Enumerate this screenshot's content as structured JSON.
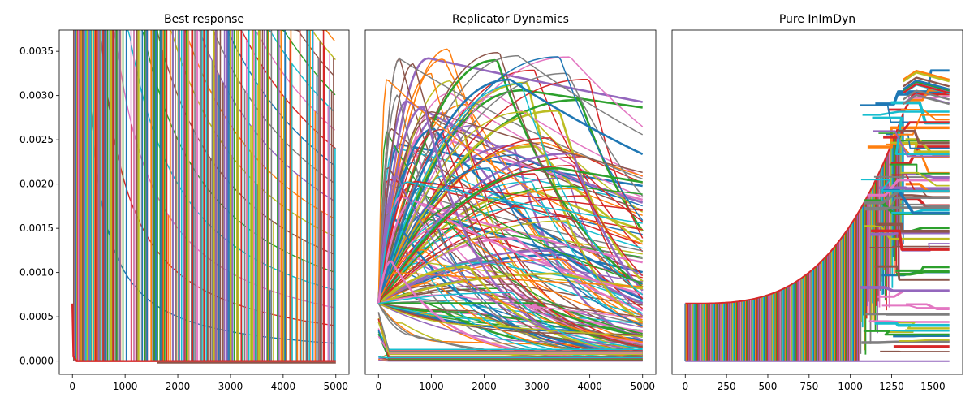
{
  "chart_data": [
    {
      "type": "line",
      "title": "Best response",
      "xlabel": "",
      "ylabel": "",
      "xlim": [
        -250,
        5250
      ],
      "ylim": [
        -0.00015,
        0.00374
      ],
      "x_ticks": [
        0,
        1000,
        2000,
        3000,
        4000,
        5000
      ],
      "x_tick_labels": [
        "0",
        "1000",
        "2000",
        "3000",
        "4000",
        "5000"
      ],
      "y_ticks": [
        0.0,
        0.0005,
        0.001,
        0.0015,
        0.002,
        0.0025,
        0.003,
        0.0035
      ],
      "y_tick_labels": [
        "0.0000",
        "0.0005",
        "0.0010",
        "0.0015",
        "0.0020",
        "0.0025",
        "0.0030",
        "0.0035"
      ],
      "grid": false,
      "legend": "none",
      "series_note_values": {
        "initial_value": 0.00065,
        "decay_curves_at_x5000": [
          0.0002,
          0.0004,
          0.0006,
          0.0008,
          0.001,
          0.0012,
          0.0014,
          0.0016,
          0.0018,
          0.002,
          0.0022,
          0.0024,
          0.0026,
          0.0028,
          0.003,
          0.0032,
          0.0034,
          0.0036
        ],
        "floor_value": 0.0
      }
    },
    {
      "type": "line",
      "title": "Replicator Dynamics",
      "xlabel": "",
      "ylabel": "",
      "xlim": [
        -250,
        5250
      ],
      "ylim": [
        -0.00015,
        0.00374
      ],
      "x_ticks": [
        0,
        1000,
        2000,
        3000,
        4000,
        5000
      ],
      "x_tick_labels": [
        "0",
        "1000",
        "2000",
        "3000",
        "4000",
        "5000"
      ],
      "grid": false,
      "legend": "none",
      "series_note_values": {
        "initial_value": 0.00065,
        "max_peak": 0.00355,
        "peak_x_range": [
          150,
          4000
        ],
        "n_curves": 140
      }
    },
    {
      "type": "line",
      "title": "Pure InImDyn",
      "xlabel": "",
      "ylabel": "",
      "xlim": [
        -80,
        1680
      ],
      "ylim": [
        -0.00015,
        0.00374
      ],
      "x_ticks": [
        0,
        250,
        500,
        750,
        1000,
        1250,
        1500
      ],
      "x_tick_labels": [
        "0",
        "250",
        "500",
        "750",
        "1000",
        "1250",
        "1500"
      ],
      "grid": false,
      "legend": "none",
      "series_note_values": {
        "initial_value": 0.00065,
        "envelope_peak": 0.0028,
        "envelope_peak_x": 1320,
        "x_end": 1600
      }
    }
  ],
  "colors": [
    "#1f77b4",
    "#ff7f0e",
    "#2ca02c",
    "#d62728",
    "#9467bd",
    "#8c564b",
    "#e377c2",
    "#7f7f7f",
    "#bcbd22",
    "#17becf"
  ]
}
